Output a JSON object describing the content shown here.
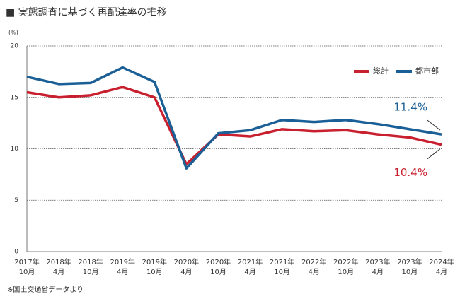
{
  "chart_data": {
    "type": "line",
    "title": "■ 実態調査に基づく再配達率の推移",
    "y_unit": "(%)",
    "source": "※国土交通省データより",
    "categories": [
      [
        "2017年",
        "10月"
      ],
      [
        "2018年",
        "4月"
      ],
      [
        "2018年",
        "10月"
      ],
      [
        "2019年",
        "4月"
      ],
      [
        "2019年",
        "10月"
      ],
      [
        "2020年",
        "4月"
      ],
      [
        "2020年",
        "10月"
      ],
      [
        "2021年",
        "4月"
      ],
      [
        "2021年",
        "10月"
      ],
      [
        "2022年",
        "4月"
      ],
      [
        "2022年",
        "10月"
      ],
      [
        "2023年",
        "4月"
      ],
      [
        "2023年",
        "10月"
      ],
      [
        "2024年",
        "4月"
      ]
    ],
    "series": [
      {
        "name": "総計",
        "color": "#c8202f",
        "values": [
          15.5,
          15.0,
          15.2,
          16.0,
          15.0,
          8.5,
          11.4,
          11.2,
          11.9,
          11.7,
          11.8,
          11.4,
          11.1,
          10.4
        ],
        "value_labels": [
          null,
          null,
          null,
          null,
          null,
          null,
          null,
          null,
          null,
          null,
          null,
          null,
          null,
          "10.4%"
        ]
      },
      {
        "name": "都市部",
        "color": "#1a5f96",
        "values": [
          17.0,
          16.3,
          16.4,
          17.9,
          16.5,
          8.1,
          11.5,
          11.8,
          12.8,
          12.6,
          12.8,
          12.4,
          11.9,
          11.4
        ],
        "value_labels": [
          null,
          null,
          null,
          null,
          null,
          null,
          null,
          null,
          null,
          null,
          null,
          null,
          null,
          "11.4%"
        ]
      }
    ],
    "ylim": [
      0,
      20
    ],
    "yticks": [
      0,
      5,
      10,
      15,
      20
    ],
    "grid": true,
    "legend": "top-right"
  }
}
